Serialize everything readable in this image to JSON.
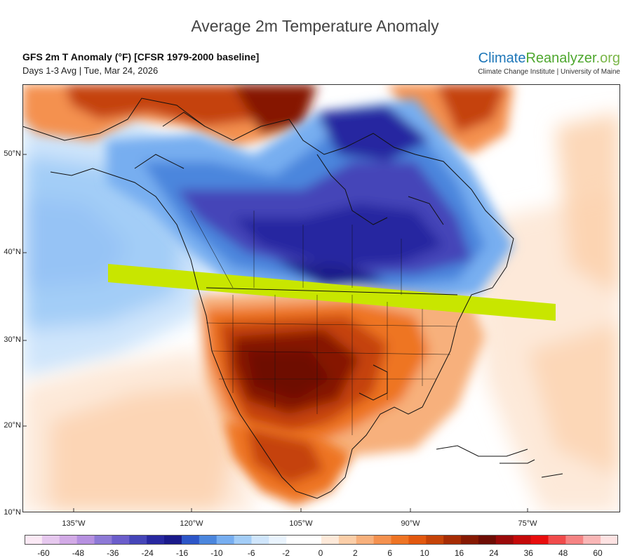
{
  "header": {
    "title": "Average 2m Temperature Anomaly",
    "model_line": "GFS 2m T Anomaly (°F) [CFSR 1979-2000 baseline]",
    "period_line": "Days 1-3 Avg | Tue, Mar 24, 2026"
  },
  "brand": {
    "part1": "Climate",
    "part2": "Reanalyzer",
    "part3": ".org",
    "subtitle": "Climate Change Institute | University of Maine",
    "colors": {
      "blue": "#1d76b8",
      "green": "#4ea72e",
      "light_green": "#7ab648"
    }
  },
  "map": {
    "latitude_labels": [
      "50°N",
      "40°N",
      "30°N",
      "20°N",
      "10°N"
    ],
    "longitude_labels": [
      "135°W",
      "120°W",
      "105°W",
      "90°W",
      "75°W"
    ],
    "highlight_band_color": "#c8e600"
  },
  "legend": {
    "labels": [
      "-60",
      "-48",
      "-36",
      "-24",
      "-16",
      "-10",
      "-6",
      "-2",
      "0",
      "2",
      "6",
      "10",
      "16",
      "24",
      "36",
      "48",
      "60"
    ],
    "colors": [
      "#fbe9f5",
      "#e6c8ee",
      "#d2aae6",
      "#b690e0",
      "#8d79d6",
      "#6b5dcb",
      "#4545b8",
      "#2828a0",
      "#1a1a8a",
      "#2d56c8",
      "#4b86dd",
      "#77aef0",
      "#a3cdf7",
      "#cfe5fb",
      "#e9f3fd",
      "#ffffff",
      "#ffffff",
      "#fde9d9",
      "#fbcea8",
      "#f7b07c",
      "#f4914f",
      "#ee7424",
      "#e2580f",
      "#c54308",
      "#a62c04",
      "#861903",
      "#6e0d05",
      "#9a0a0a",
      "#c40a0a",
      "#e80d0d",
      "#f04b4b",
      "#f58383",
      "#f9b6b6",
      "#fde2e2"
    ]
  }
}
